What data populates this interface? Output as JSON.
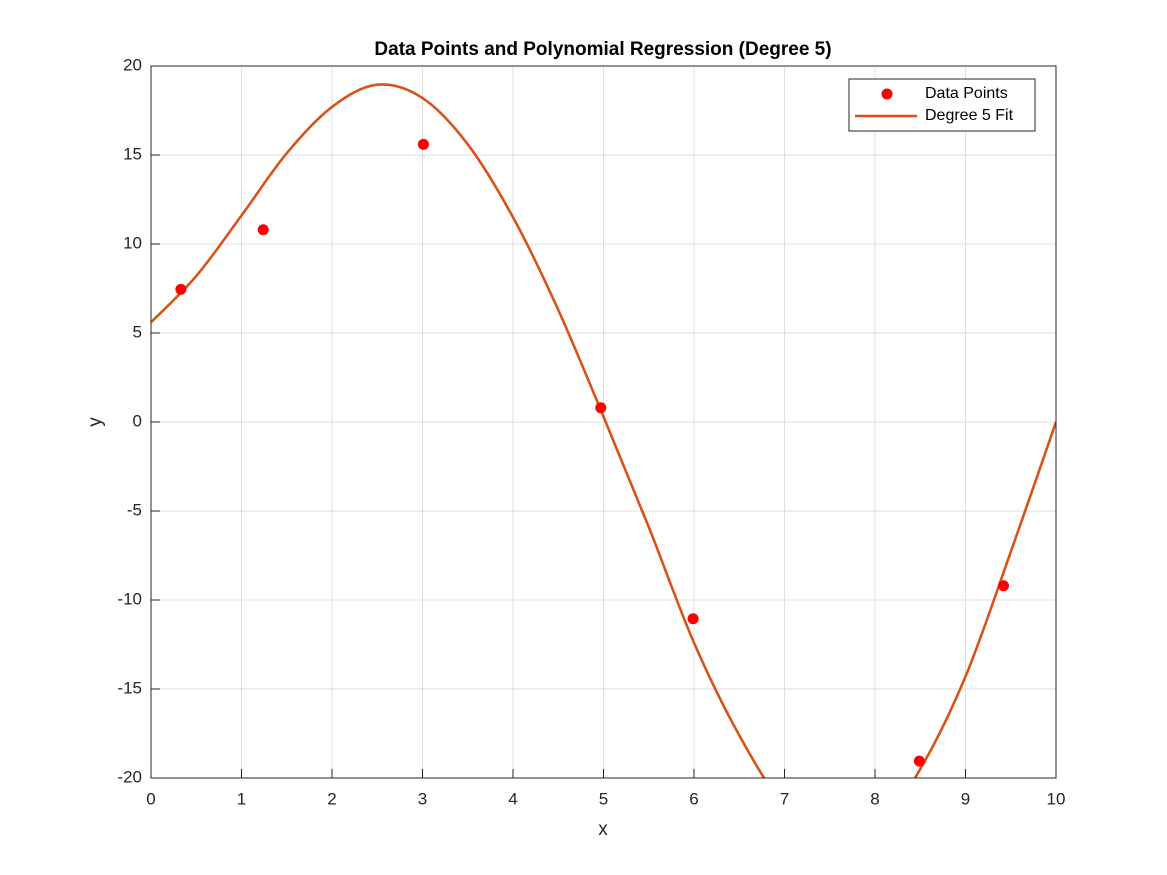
{
  "chart_data": {
    "type": "scatter+line",
    "title": "Data Points and Polynomial Regression (Degree 5)",
    "x_label": "x",
    "y_label": "y",
    "xlim": [
      0,
      10
    ],
    "ylim": [
      -20,
      20
    ],
    "xticks": [
      0,
      1,
      2,
      3,
      4,
      5,
      6,
      7,
      8,
      9,
      10
    ],
    "yticks": [
      -20,
      -15,
      -10,
      -5,
      0,
      5,
      10,
      15,
      20
    ],
    "grid": true,
    "legend": "upper right",
    "series": [
      {
        "name": "Data Points",
        "type": "scatter",
        "color": "#ff0000",
        "x": [
          0.33,
          1.24,
          3.01,
          4.97,
          5.99,
          8.49,
          9.42
        ],
        "values": [
          7.45,
          10.8,
          15.6,
          0.8,
          -11.05,
          -19.05,
          -9.2
        ]
      },
      {
        "name": "Degree 5 Fit",
        "type": "line",
        "color": "#d95319",
        "x": [
          0,
          0.5,
          1,
          1.5,
          2,
          2.5,
          3,
          3.5,
          4,
          4.5,
          5,
          5.5,
          6,
          6.5,
          7,
          7.5,
          8,
          8.5,
          9,
          9.5,
          10
        ],
        "values": [
          5.6,
          8.2,
          11.6,
          15.1,
          17.7,
          18.95,
          18.2,
          15.6,
          11.5,
          6.3,
          0.3,
          -5.9,
          -12.4,
          -17.6,
          -21.6,
          -23.6,
          -23.0,
          -19.5,
          -14.3,
          -7.3,
          0
        ]
      }
    ]
  }
}
